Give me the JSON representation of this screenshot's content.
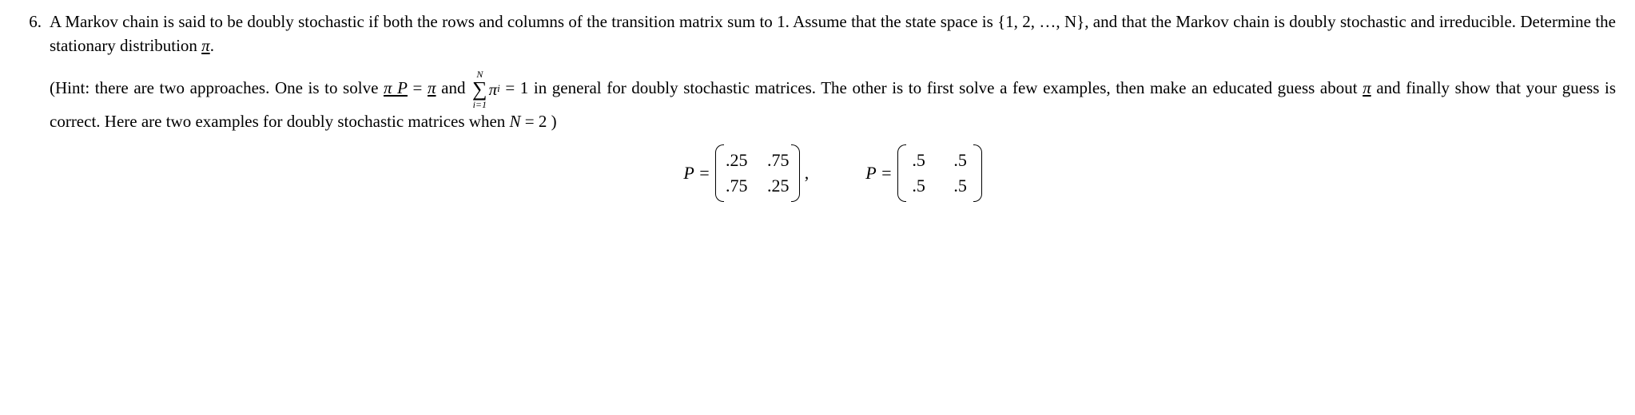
{
  "problem": {
    "number": "6.",
    "statement_parts": {
      "p1a": "A Markov chain is said to be doubly stochastic if both the rows and columns of the transition matrix sum to 1. Assume that the state space is {1, 2, …, N}, and that the Markov chain is doubly stochastic and irreducible. Determine the stationary distribution ",
      "pi": "π",
      "p1b": "."
    },
    "hint_parts": {
      "h1": "(Hint: there are two approaches. One is to solve ",
      "pi1": "π",
      "P": " P",
      "eq": " = ",
      "pi2": "π",
      "and": " and ",
      "sum_top": "N",
      "sum_bot": "i=1",
      "pi_i": "π",
      "sub_i": "i",
      "eq1": " = 1 in general for doubly stochastic matrices. The other is to first solve a few examples, then make an educated guess about ",
      "pi3": "π",
      "h2": " and finally show that your guess is correct. Here are two examples for doubly stochastic matrices when ",
      "N": "N",
      "eq2": " = 2 )"
    }
  },
  "matrices": {
    "label_a": "P =",
    "A": {
      "r1c1": ".25",
      "r1c2": ".75",
      "r2c1": ".75",
      "r2c2": ".25"
    },
    "comma": ",",
    "label_b": "P =",
    "B": {
      "r1c1": ".5",
      "r1c2": ".5",
      "r2c1": ".5",
      "r2c2": ".5"
    }
  },
  "style": {
    "font_family": "Times New Roman",
    "font_size_pt": 16,
    "background_color": "#ffffff",
    "text_color": "#000000"
  }
}
